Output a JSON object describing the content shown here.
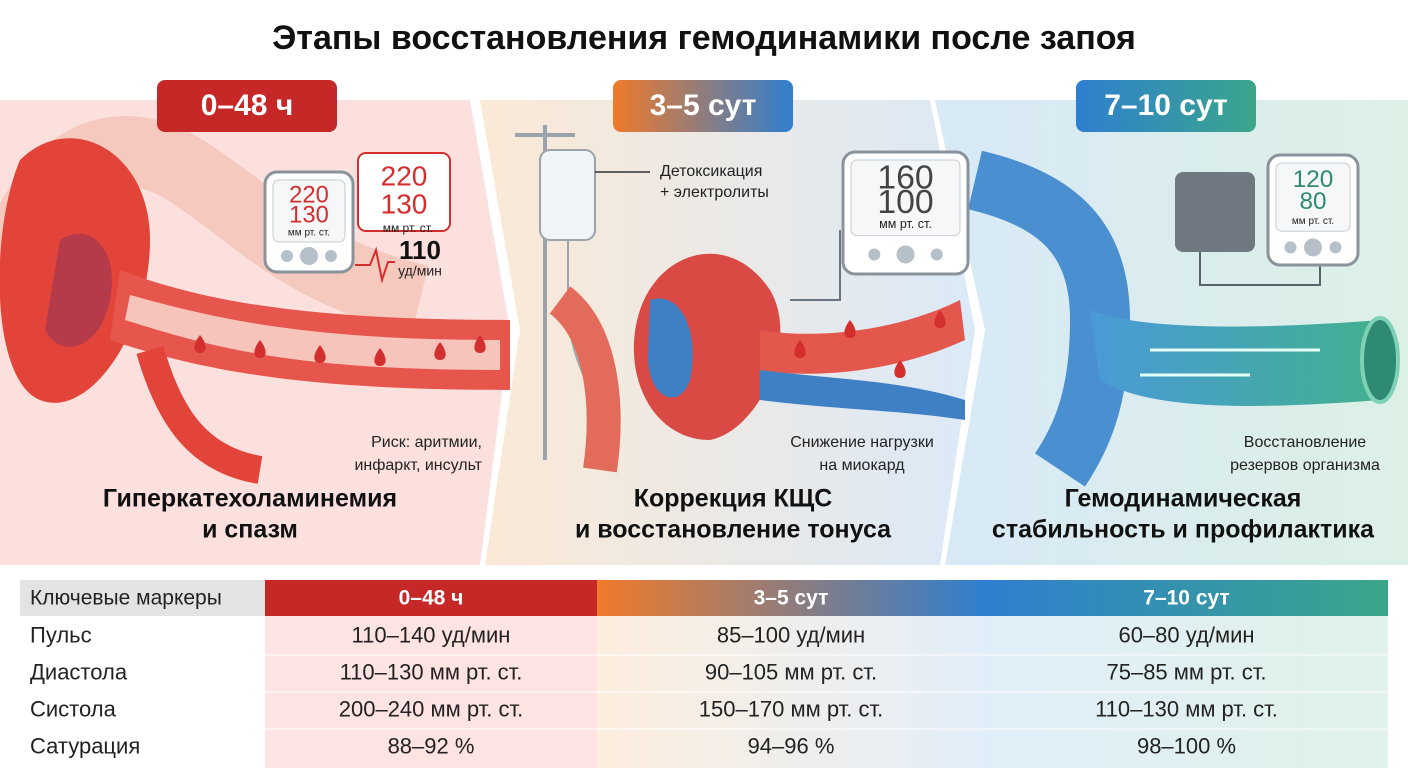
{
  "title": "Этапы восстановления гемодинамики после запоя",
  "stages": [
    {
      "badge": "0–48 ч",
      "monitor": {
        "systolic": "220",
        "diastolic": "130",
        "unit": "мм рт. ст."
      },
      "readout": {
        "systolic": "220",
        "diastolic": "130",
        "unit": "мм рт. ст.",
        "pulse": "110",
        "pulse_unit": "уд/мин"
      },
      "note": [
        "Риск: аритмии,",
        "инфаркт, инсульт"
      ],
      "caption": [
        "Гиперкатехоламинемия",
        "и спазм"
      ]
    },
    {
      "badge": "3–5 сут",
      "label": [
        "Детоксикация",
        "+ электролиты"
      ],
      "monitor": {
        "systolic": "160",
        "diastolic": "100",
        "unit": "мм рт. ст."
      },
      "note": [
        "Снижение нагрузки",
        "на миокард"
      ],
      "caption": [
        "Коррекция КЩС",
        "и восстановление тонуса"
      ]
    },
    {
      "badge": "7–10 сут",
      "monitor": {
        "systolic": "120",
        "diastolic": "80",
        "unit": "мм рт. ст."
      },
      "note": [
        "Восстановление",
        "резервов организма"
      ],
      "caption": [
        "Гемодинамическая",
        "стабильность и профилактика"
      ]
    }
  ],
  "table": {
    "header": [
      "Ключевые маркеры",
      "0–48 ч",
      "3–5 сут",
      "7–10 сут"
    ],
    "rows": [
      [
        "Пульс",
        "110–140 уд/мин",
        "85–100 уд/мин",
        "60–80 уд/мин"
      ],
      [
        "Диастола",
        "110–130 мм рт. ст.",
        "90–105 мм рт. ст.",
        "75–85 мм рт. ст."
      ],
      [
        "Систола",
        "200–240 мм рт. ст.",
        "150–170 мм рт. ст.",
        "110–130 мм рт. ст."
      ],
      [
        "Сатурация",
        "88–92 %",
        "94–96 %",
        "98–100 %"
      ]
    ]
  }
}
